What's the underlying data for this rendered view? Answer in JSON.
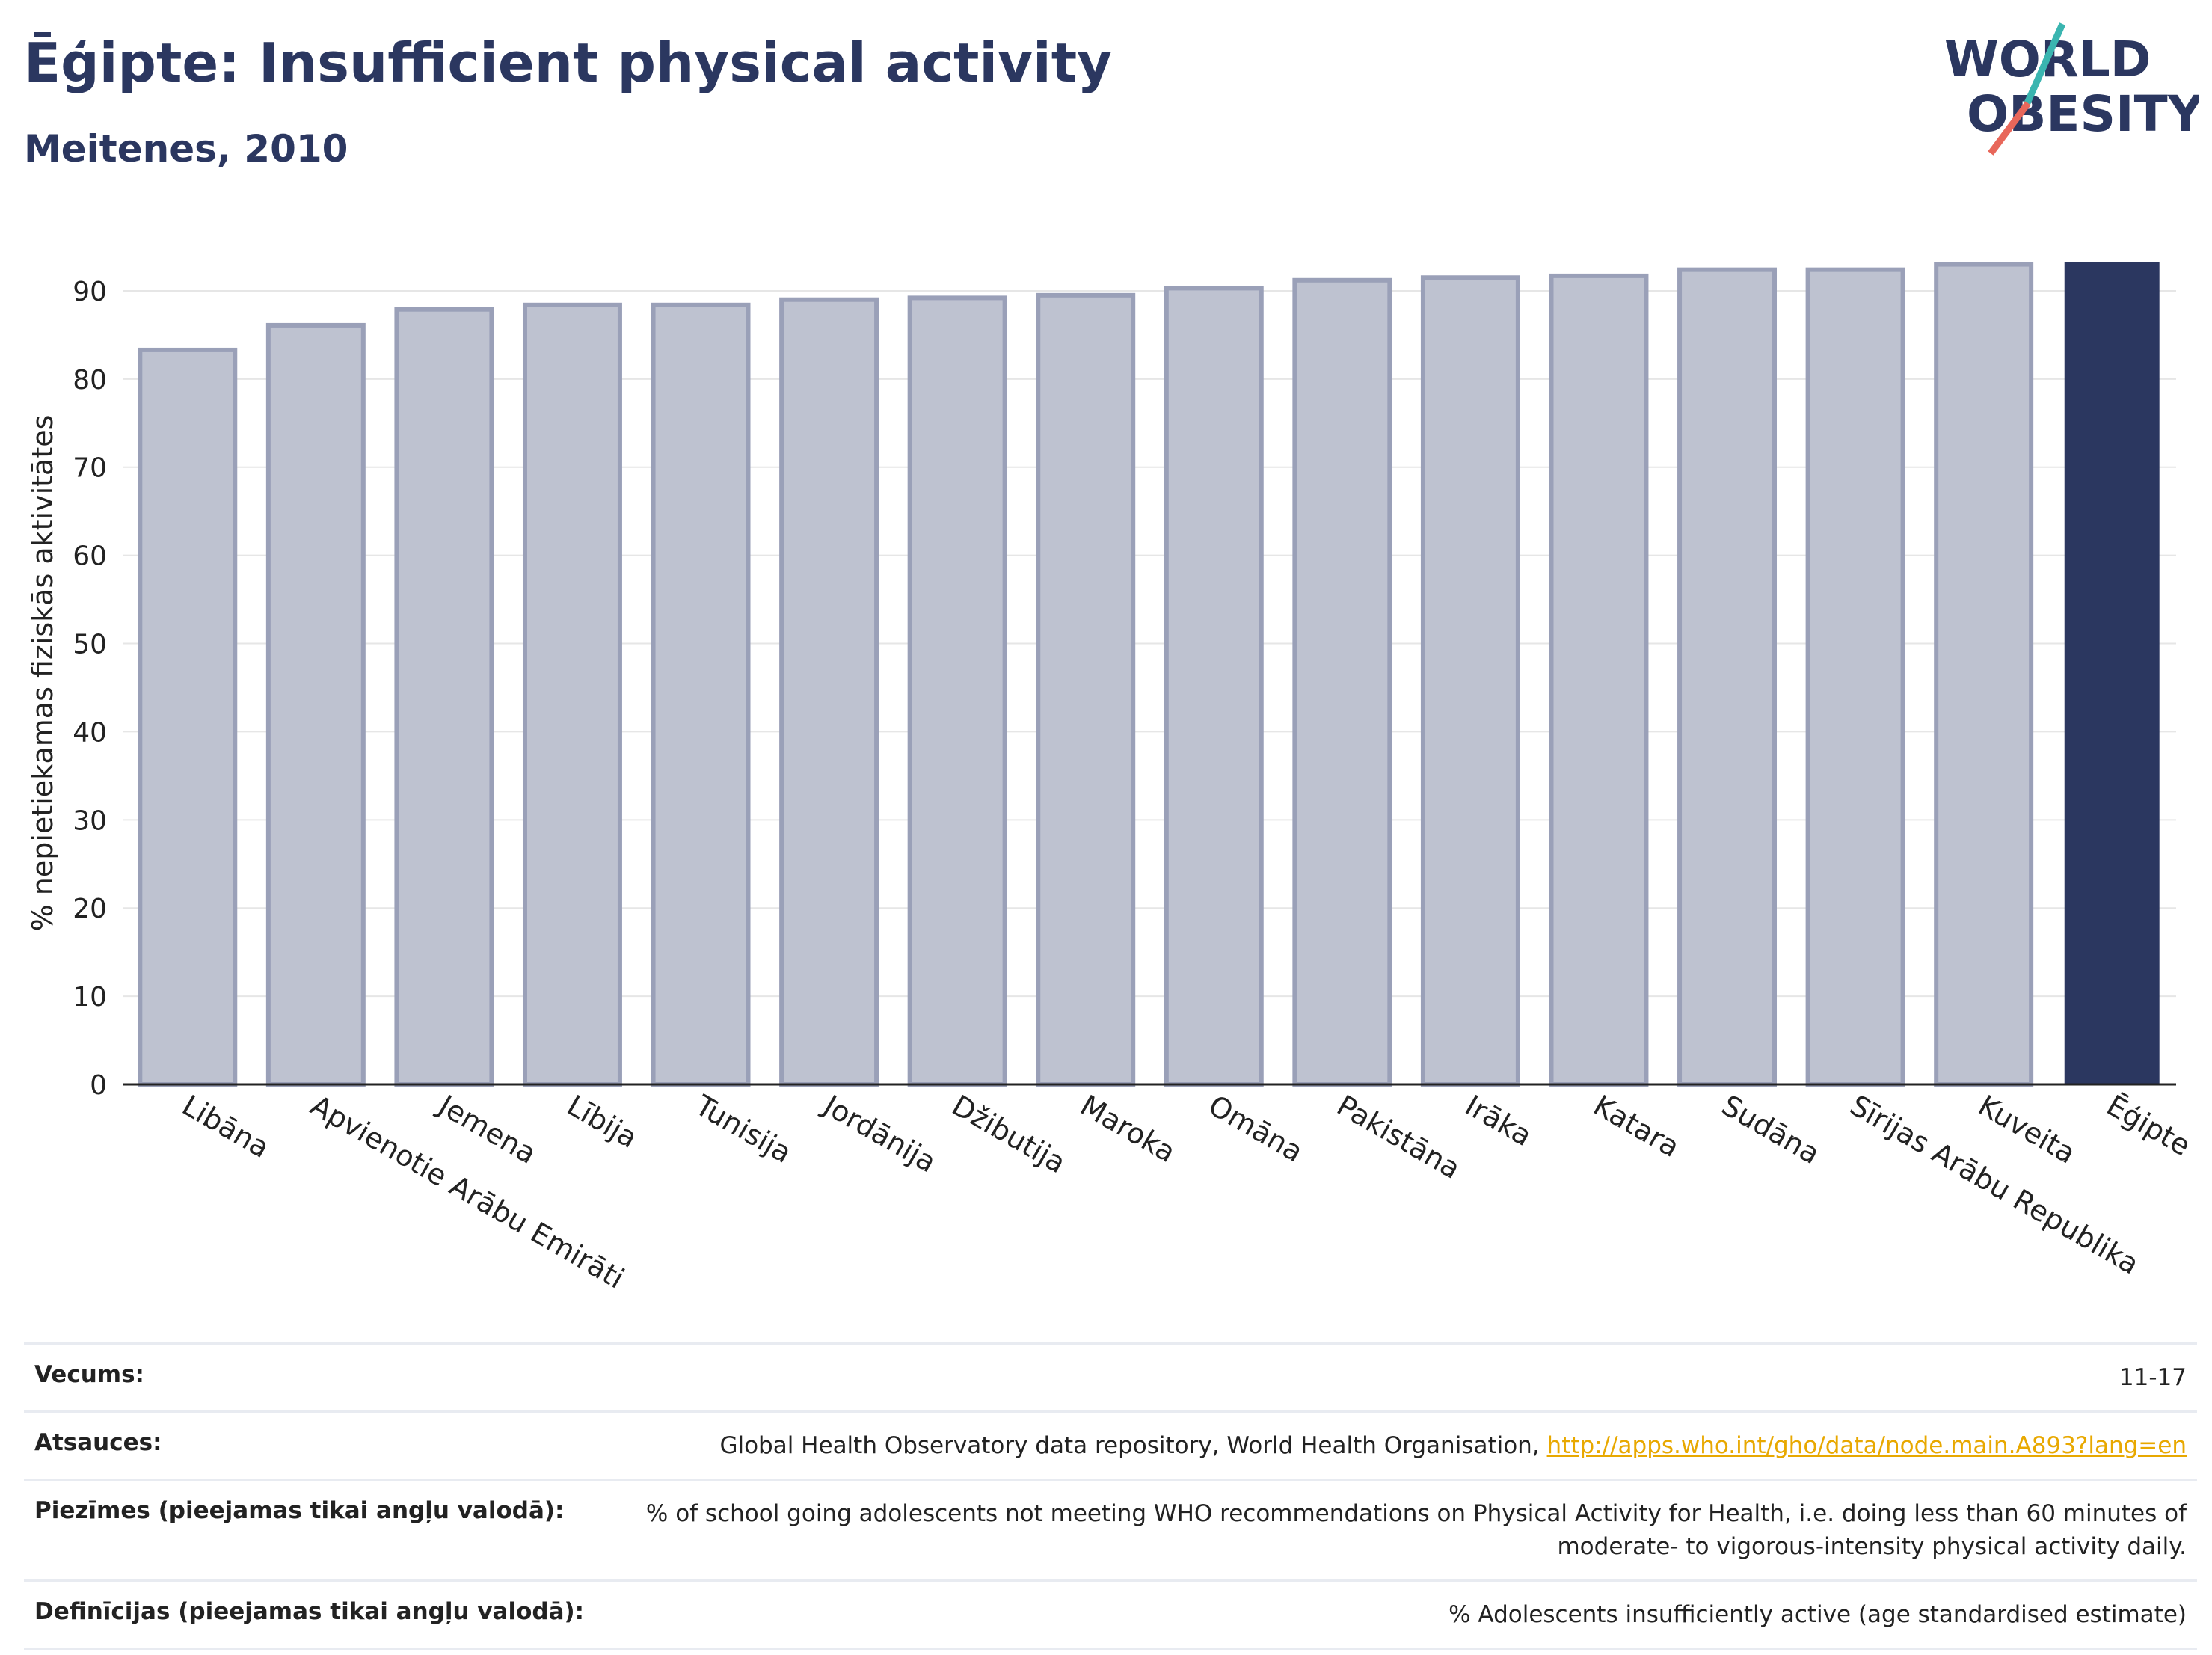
{
  "header": {
    "title": "Ēģipte: Insufficient physical activity",
    "subtitle": "Meitenes, 2010"
  },
  "logo": {
    "line1": "WORLD",
    "line2": "OBESITY",
    "colors": {
      "text": "#2b3760",
      "slash_top": "#3ab5b0",
      "slash_bottom": "#e8675a"
    }
  },
  "chart_data": {
    "type": "bar",
    "ylabel": "% nepietiekamas fiziskās aktivitātes",
    "ylim": [
      0,
      95
    ],
    "yticks": [
      0,
      10,
      20,
      30,
      40,
      50,
      60,
      70,
      80,
      90
    ],
    "grid": true,
    "categories": [
      "Libāna",
      "Apvienotie Arābu Emirāti",
      "Jemena",
      "Lībija",
      "Tunisija",
      "Jordānija",
      "Džibutija",
      "Maroka",
      "Omāna",
      "Pakistāna",
      "Irāka",
      "Katara",
      "Sudāna",
      "Sīrijas Arābu Republika",
      "Kuveita",
      "Ēģipte"
    ],
    "values": [
      83.3,
      86.1,
      87.9,
      88.4,
      88.4,
      89.0,
      89.2,
      89.5,
      90.3,
      91.2,
      91.5,
      91.7,
      92.4,
      92.4,
      93.0,
      93.3
    ],
    "highlight_index": 15,
    "colors": {
      "bar": "#bec2d0",
      "bar_edge": "#9aa0b8",
      "highlight": "#2b3760"
    }
  },
  "meta": [
    {
      "label": "Vecums:",
      "value": "11-17"
    },
    {
      "label": "Atsauces:",
      "value": "Global Health Observatory data repository, World Health Organisation, ",
      "link": "http://apps.who.int/gho/data/node.main.A893?lang=en"
    },
    {
      "label": "Piezīmes (pieejamas tikai angļu valodā):",
      "value": "% of school going adolescents not meeting WHO recommendations on Physical Activity for Health, i.e. doing less than 60 minutes of moderate- to vigorous-intensity physical activity daily."
    },
    {
      "label": "Definīcijas (pieejamas tikai angļu valodā):",
      "value": "% Adolescents insufficiently active (age standardised estimate)"
    }
  ]
}
